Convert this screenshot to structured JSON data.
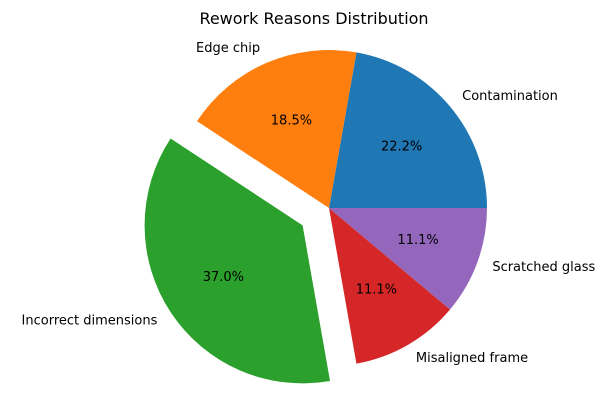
{
  "chart_data": {
    "type": "pie",
    "title": "Rework Reasons Distribution",
    "slices": [
      {
        "label": "Contamination",
        "value": 22.2,
        "pct_label": "22.2%",
        "color": "#1f77b4",
        "explode": 0
      },
      {
        "label": "Edge chip",
        "value": 18.5,
        "pct_label": "18.5%",
        "color": "#ff7f0e",
        "explode": 0
      },
      {
        "label": "Incorrect dimensions",
        "value": 37.0,
        "pct_label": "37.0%",
        "color": "#2ca02c",
        "explode": 0.2
      },
      {
        "label": "Misaligned frame",
        "value": 11.1,
        "pct_label": "11.1%",
        "color": "#d62728",
        "explode": 0
      },
      {
        "label": "Scratched glass",
        "value": 11.1,
        "pct_label": "11.1%",
        "color": "#9467bd",
        "explode": 0
      }
    ],
    "start_angle_deg": 0,
    "direction": "counterclockwise",
    "legend": "none"
  }
}
